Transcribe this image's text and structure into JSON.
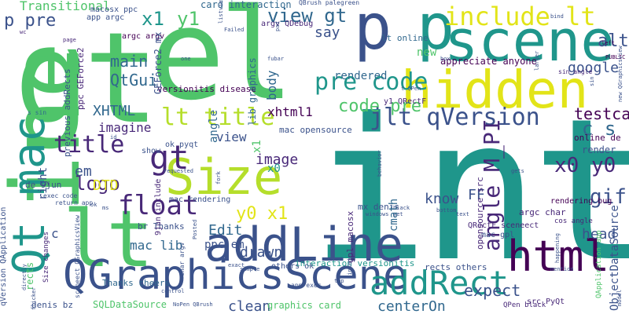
{
  "palette": {
    "teal": "#1f968b",
    "green": "#4fc46a",
    "lime": "#b5de2b",
    "yellow": "#e2e418",
    "navy": "#3b528b",
    "purple": "#482878",
    "dark": "#440154",
    "blue": "#31688e"
  },
  "words": {
    "int": "int",
    "lt_big": "lt",
    "gt_big": "gt",
    "el": "el",
    "ine": "ine",
    "scene": "scene",
    "hidden": "hidden",
    "p": "p",
    "qt_mac": "Qt mac",
    "size": "Size",
    "addline": "addLine",
    "qgraphicsscene": "QGraphicsScene",
    "html": "html",
    "addrect": "addRect",
    "include_lt": "include lt",
    "pre_code": "pre code",
    "view_gt": "view gt",
    "jlt_qversion": "jlt qVersion",
    "lt_title": "lt title",
    "float": "float",
    "title": "title",
    "gt_mid": "gt",
    "x0_y0": "x0 y0",
    "angle_mpi": "angle M_PI",
    "testcase": "testcase",
    "alt": "alt",
    "qtgui": "QtGui",
    "main": "main",
    "code_pre": "code pre",
    "google": "google",
    "gif": "gif",
    "c_s": "c s",
    "rendered": "rendered",
    "logo": "logo",
    "x1": "x1",
    "y1": "y1",
    "p_pre": "p pre",
    "transitional": "Transitional",
    "say": "say",
    "xhtml": "XHTML",
    "xhtml1": "xhtml1",
    "imagine": "imagine",
    "x0_y0_small": "y0 x1",
    "edit": "Edit",
    "mac_lib": "mac lib",
    "head": "head",
    "expect": "expect",
    "centeron": "centerOn",
    "clean": "clean",
    "know": "know",
    "drawn": "drawn",
    "ppc_em": "ppc em",
    "image": "image",
    "dtd": "DTD",
    "em": "em",
    "cmath": "cmath",
    "ff": "FF",
    "new": "new",
    "lt_online": "lt online",
    "card_interaction": "card interaction",
    "appreciate_anyone": "appreciate anyone",
    "graphics_card": "graphics card",
    "sqldatasource": "SQLDataSource",
    "objectdatasource": "ObjectDataSource",
    "thanks_cheers": "Thanks cheers",
    "interaction_versionitis": "interaction versionitis",
    "rects_others": "rects others",
    "qpen_black": "QPen black",
    "lib_graphics": "lib graphics",
    "versionitis_disease": "versionitis disease",
    "mac_opensource": "mac opensource",
    "previous_addrects": "previous addRects",
    "geforce2_mx": "GEForce2 mx",
    "ppc_geforce2": "ppc GEForce2",
    "br_thanks": "br Thanks",
    "mac_rendering": "mac rendering",
    "rendering_bug": "rendering bug",
    "argc_char": "argc char",
    "denis_bz": "denis bz",
    "de_9jun": "de 9jun",
    "mx_denis": "mx denis",
    "app_argc": "app argc",
    "argc_argv": "argc argv",
    "macosx_ppc": "macosx ppc",
    "argv_qdebug": "argv QDebug",
    "gpl_macosx": "gpl macosx",
    "opensource_src": "opensource src",
    "qrectf_sceneect": "QRectF sceneect",
    "y1_qrectf": "y1 QRectF",
    "others_ok": "others ok",
    "mac_gpl": "mac gpl",
    "x0": "x0",
    "qbrush_palegreen": "QBrush palegreen",
    "qversion_qapplication": "qVersion QApplication",
    "qapplication_app": "QApplication app",
    "body": "body",
    "view": "view",
    "angle": "angle",
    "right": "right",
    "c": "c",
    "ok_pyqt": "ok pyqt",
    "online_de": "online de",
    "cos_angle": "cos angle",
    "sin_angle": "sin angle",
    "show": "show",
    "render": "render",
    "src_pyqt": "src PyQt",
    "new_qgraphicsview": "new QGraphicsView",
    "nopen_qbrush": "NoPen QBrush",
    "app_exec": "app exec",
    "exec_code": "exec code",
    "return_app": "return app",
    "size_changes": "Size changes",
    "rects": "rects",
    "sceneect_qgraphicsview": "sceneect QGraphicsView",
    "9jun_include": "9jun include",
    "char_argv": "char argv",
    "s_sin": "s sin",
    "qpen": "t QPen",
    "sin": "sin",
    "bind": "bind",
    "left": "left",
    "public": "PUBLIC",
    "failed": "Failed",
    "listview": "listview",
    "black": "black",
    "behavior": "behavior",
    "bottom": "bottom",
    "text": "text",
    "happening": "happening",
    "mention": "mention",
    "flicker": "flicker",
    "directly": "directly",
    "model": "model",
    "top": "top",
    "linked": "linked",
    "simple": "simple",
    "exact": "exact",
    "control": "control",
    "fubar": "fubar",
    "gets": "gets",
    "box": "box",
    "pad": "pad",
    "one": "one",
    "requested": "requested",
    "fork": "fork",
    "posted": "Posted",
    "yet": "yet",
    "windows": "windows",
    "id": "id",
    "ms": "ms",
    "gpl": "gpl",
    "ok": "ok",
    "wa": "wa",
    "page": "page",
    "gl": "gl",
    "sn": "sn",
    "qpen_small": "QPen",
    "opengl": "opengl",
    "larger": "larger",
    "black_small": "black",
    "wc": "wc"
  }
}
